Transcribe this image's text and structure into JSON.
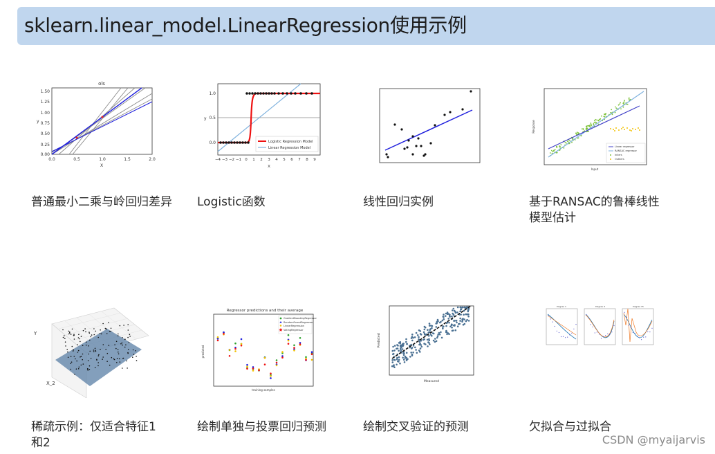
{
  "header": {
    "title": "sklearn.linear_model.LinearRegression使用示例"
  },
  "examples": [
    {
      "caption": "普通最小二乘与岭回归差异",
      "thumb_title": "ols",
      "xlabel": "X",
      "ylabel": "y",
      "yticks": [
        "1.50",
        "1.25",
        "1.00",
        "0.75",
        "0.50",
        "0.25",
        "0.00"
      ],
      "xticks": [
        "0.0",
        "0.5",
        "1.0",
        "1.5",
        "2.0"
      ]
    },
    {
      "caption": "Logistic函数",
      "xlabel": "X",
      "ylabel": "y",
      "yticks": [
        "1.0",
        "0.5",
        "0.0"
      ],
      "xticks": [
        "−4",
        "−3",
        "−2",
        "−1",
        "0",
        "1",
        "2",
        "3",
        "4",
        "5",
        "6",
        "7",
        "8",
        "9"
      ],
      "legend": [
        "Logistic Regression Model",
        "Linear Regression Model"
      ]
    },
    {
      "caption": "线性回归实例"
    },
    {
      "caption": "基于RANSAC的鲁棒线性模型估计",
      "xlabel": "Input",
      "ylabel": "Response",
      "legend": [
        "Linear regressor",
        "RANSAC regressor",
        "Inliers",
        "Outliers"
      ]
    },
    {
      "caption": "稀疏示例：仅适合特征1和2",
      "axis_y": "Y",
      "axis_x2": "X_2"
    },
    {
      "caption": "绘制单独与投票回归预测",
      "thumb_title": "Regressor predictions and their average",
      "xlabel": "training samples",
      "ylabel": "predicted",
      "legend": [
        "GradientBoostingRegressor",
        "RandomForestRegressor",
        "LinearRegression",
        "VotingRegressor"
      ]
    },
    {
      "caption": "绘制交叉验证的预测",
      "xlabel": "Measured",
      "ylabel": "Predicted"
    },
    {
      "caption": "欠拟合与过拟合",
      "panel_titles": [
        "Degree 1",
        "Degree 4",
        "Degree 15"
      ]
    }
  ],
  "watermark": "CSDN @myaijarvis",
  "colors": {
    "header_bg": "#c0d6ee",
    "line_blue": "#1f1fdd",
    "logistic_red": "#ee1111",
    "inlier_green": "#7ec23a",
    "outlier_gold": "#f2c100"
  }
}
